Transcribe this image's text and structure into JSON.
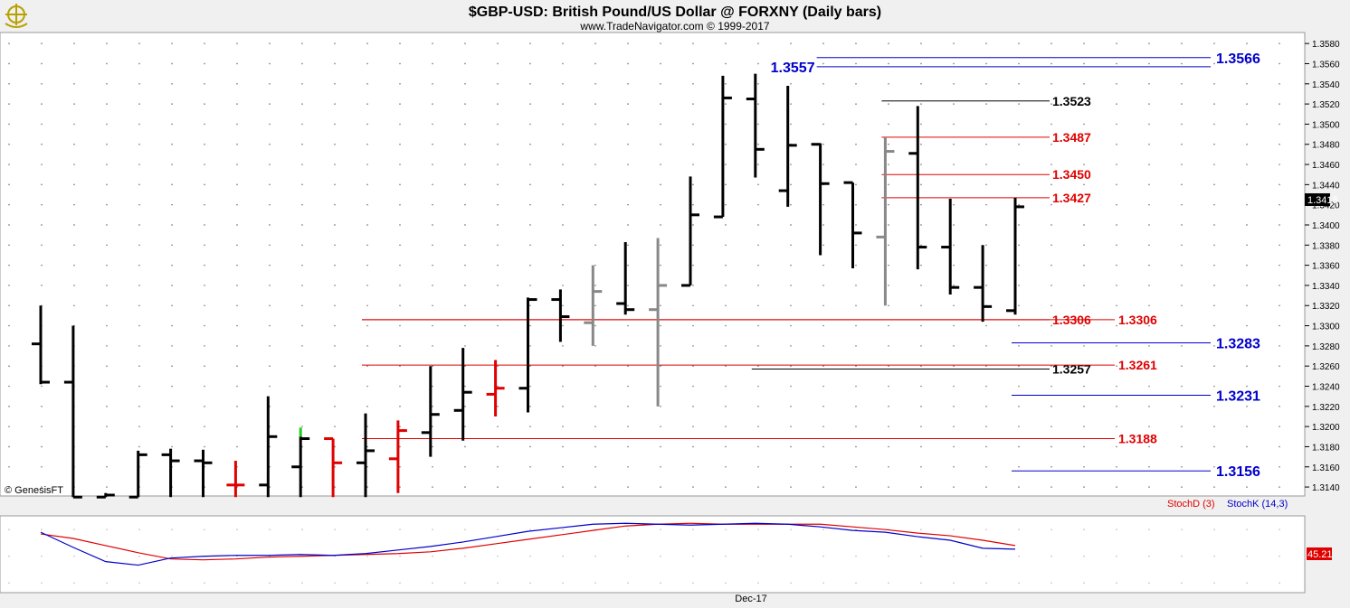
{
  "header": {
    "title": "$GBP-USD:  British Pound/US Dollar @ FORXNY  (Daily bars)",
    "copyright": "www.TradeNavigator.com © 1999-2017",
    "logo": "ship-wheel-logo"
  },
  "watermark": "© GenesisFT",
  "x_axis_label": "Dec-17",
  "colors": {
    "up": "#000000",
    "down_red": "#e00000",
    "neutral_grey": "#888888",
    "green": "#22cc22",
    "blue": "#0000cc",
    "red": "#e00000",
    "stochK": "#0000cc",
    "stochD": "#e00000"
  },
  "price_panel": {
    "y_ticks": [
      "1.3580",
      "1.3560",
      "1.3540",
      "1.3520",
      "1.3500",
      "1.3480",
      "1.3460",
      "1.3440",
      "1.3420",
      "1.3400",
      "1.3380",
      "1.3360",
      "1.3340",
      "1.3320",
      "1.3300",
      "1.3280",
      "1.3260",
      "1.3240",
      "1.3220",
      "1.3200",
      "1.3180",
      "1.3160",
      "1.3140"
    ],
    "ylim": [
      1.3132,
      1.359
    ],
    "last_price": "1.3418",
    "levels": [
      {
        "price": 1.3566,
        "label": "1.3566",
        "color": "#0000cc",
        "bar_from": 24,
        "label_pos": "right"
      },
      {
        "price": 1.3557,
        "label": "1.3557",
        "color": "#0000cc",
        "bar_from": 24,
        "label_pos": "left"
      },
      {
        "price": 1.3523,
        "label": "1.3523",
        "color": "#000000",
        "bar_from": 26,
        "label_pos": "mid"
      },
      {
        "price": 1.3487,
        "label": "1.3487",
        "color": "#e00000",
        "bar_from": 26,
        "label_pos": "mid"
      },
      {
        "price": 1.345,
        "label": "1.3450",
        "color": "#e00000",
        "bar_from": 26,
        "label_pos": "mid"
      },
      {
        "price": 1.3427,
        "label": "1.3427",
        "color": "#e00000",
        "bar_from": 26,
        "label_pos": "mid"
      },
      {
        "price": 1.3306,
        "label": "1.3306",
        "color": "#e00000",
        "bar_from": 10,
        "label_pos": "mid"
      },
      {
        "price": 1.3306,
        "label": "1.3306",
        "color": "#e00000",
        "bar_from": 10,
        "label_pos": "far"
      },
      {
        "price": 1.3283,
        "label": "1.3283",
        "color": "#0000cc",
        "bar_from": 30,
        "label_pos": "right"
      },
      {
        "price": 1.3257,
        "label": "1.3257",
        "color": "#000000",
        "bar_from": 22,
        "label_pos": "mid"
      },
      {
        "price": 1.3261,
        "label": "1.3261",
        "color": "#e00000",
        "bar_from": 10,
        "label_pos": "far"
      },
      {
        "price": 1.3231,
        "label": "1.3231",
        "color": "#0000cc",
        "bar_from": 30,
        "label_pos": "right"
      },
      {
        "price": 1.3188,
        "label": "1.3188",
        "color": "#e00000",
        "bar_from": 10,
        "label_pos": "far"
      },
      {
        "price": 1.3156,
        "label": "1.3156",
        "color": "#0000cc",
        "bar_from": 30,
        "label_pos": "right"
      }
    ]
  },
  "stoch_panel": {
    "legend_d": "StochD (3)",
    "legend_k": "StochK (14,3)",
    "value_label": "45.21",
    "scale_tick": "50"
  },
  "chart_data": {
    "type": "ohlc",
    "ohlc": [
      {
        "o": 1.3282,
        "h": 1.332,
        "l": 1.3242,
        "c": 1.3244,
        "color": "#000000"
      },
      {
        "o": 1.3244,
        "h": 1.33,
        "l": 1.313,
        "c": 1.313,
        "color": "#000000"
      },
      {
        "o": 1.313,
        "h": 1.3134,
        "l": 1.313,
        "c": 1.3132,
        "color": "#000000"
      },
      {
        "o": 1.313,
        "h": 1.3176,
        "l": 1.313,
        "c": 1.3172,
        "color": "#000000"
      },
      {
        "o": 1.3172,
        "h": 1.3178,
        "l": 1.313,
        "c": 1.3166,
        "color": "#000000"
      },
      {
        "o": 1.3166,
        "h": 1.3177,
        "l": 1.313,
        "c": 1.3164,
        "color": "#000000"
      },
      {
        "o": 1.3142,
        "h": 1.3166,
        "l": 1.313,
        "c": 1.3142,
        "color": "#e00000"
      },
      {
        "o": 1.3142,
        "h": 1.323,
        "l": 1.313,
        "c": 1.319,
        "color": "#000000"
      },
      {
        "o": 1.316,
        "h": 1.319,
        "l": 1.313,
        "c": 1.3188,
        "color": "#000000"
      },
      {
        "o": 1.3188,
        "h": 1.3188,
        "l": 1.313,
        "c": 1.3164,
        "color": "#e00000"
      },
      {
        "o": 1.3164,
        "h": 1.3213,
        "l": 1.313,
        "c": 1.3176,
        "color": "#000000"
      },
      {
        "o": 1.3168,
        "h": 1.3206,
        "l": 1.3134,
        "c": 1.3196,
        "color": "#e00000"
      },
      {
        "o": 1.3194,
        "h": 1.326,
        "l": 1.317,
        "c": 1.3212,
        "color": "#000000"
      },
      {
        "o": 1.3216,
        "h": 1.3278,
        "l": 1.3186,
        "c": 1.3234,
        "color": "#000000"
      },
      {
        "o": 1.3232,
        "h": 1.3266,
        "l": 1.321,
        "c": 1.3238,
        "color": "#e00000"
      },
      {
        "o": 1.3238,
        "h": 1.3328,
        "l": 1.3214,
        "c": 1.3326,
        "color": "#000000"
      },
      {
        "o": 1.3326,
        "h": 1.3336,
        "l": 1.3284,
        "c": 1.3309,
        "color": "#000000"
      },
      {
        "o": 1.3303,
        "h": 1.336,
        "l": 1.328,
        "c": 1.3334,
        "color": "#888888"
      },
      {
        "o": 1.3322,
        "h": 1.3383,
        "l": 1.3311,
        "c": 1.3316,
        "color": "#000000"
      },
      {
        "o": 1.3316,
        "h": 1.3387,
        "l": 1.322,
        "c": 1.334,
        "color": "#888888"
      },
      {
        "o": 1.334,
        "h": 1.3448,
        "l": 1.334,
        "c": 1.341,
        "color": "#000000"
      },
      {
        "o": 1.3408,
        "h": 1.3548,
        "l": 1.3408,
        "c": 1.3526,
        "color": "#000000"
      },
      {
        "o": 1.3525,
        "h": 1.355,
        "l": 1.3447,
        "c": 1.3475,
        "color": "#000000"
      },
      {
        "o": 1.3434,
        "h": 1.3538,
        "l": 1.3418,
        "c": 1.3479,
        "color": "#000000"
      },
      {
        "o": 1.348,
        "h": 1.3481,
        "l": 1.337,
        "c": 1.3441,
        "color": "#000000"
      },
      {
        "o": 1.3442,
        "h": 1.3442,
        "l": 1.3357,
        "c": 1.3392,
        "color": "#000000"
      },
      {
        "o": 1.3388,
        "h": 1.3487,
        "l": 1.332,
        "c": 1.3473,
        "color": "#888888"
      },
      {
        "o": 1.3471,
        "h": 1.3518,
        "l": 1.3356,
        "c": 1.3378,
        "color": "#000000"
      },
      {
        "o": 1.3378,
        "h": 1.3426,
        "l": 1.3331,
        "c": 1.3338,
        "color": "#000000"
      },
      {
        "o": 1.3338,
        "h": 1.338,
        "l": 1.3304,
        "c": 1.3319,
        "color": "#000000"
      },
      {
        "o": 1.3315,
        "h": 1.3427,
        "l": 1.3311,
        "c": 1.3418,
        "color": "#000000"
      }
    ],
    "stochK": [
      77,
      60,
      44,
      40,
      48,
      50,
      51,
      51,
      52,
      51,
      53,
      57,
      61,
      66,
      72,
      78,
      82,
      86,
      87,
      86,
      85,
      86,
      87,
      86,
      83,
      79,
      77,
      72,
      68,
      59,
      58
    ],
    "stochD": [
      75,
      70,
      62,
      54,
      47,
      46,
      47,
      49,
      50,
      51,
      52,
      53,
      55,
      59,
      64,
      69,
      74,
      79,
      84,
      86,
      87,
      86,
      86,
      86,
      86,
      83,
      80,
      76,
      73,
      68,
      62
    ]
  }
}
